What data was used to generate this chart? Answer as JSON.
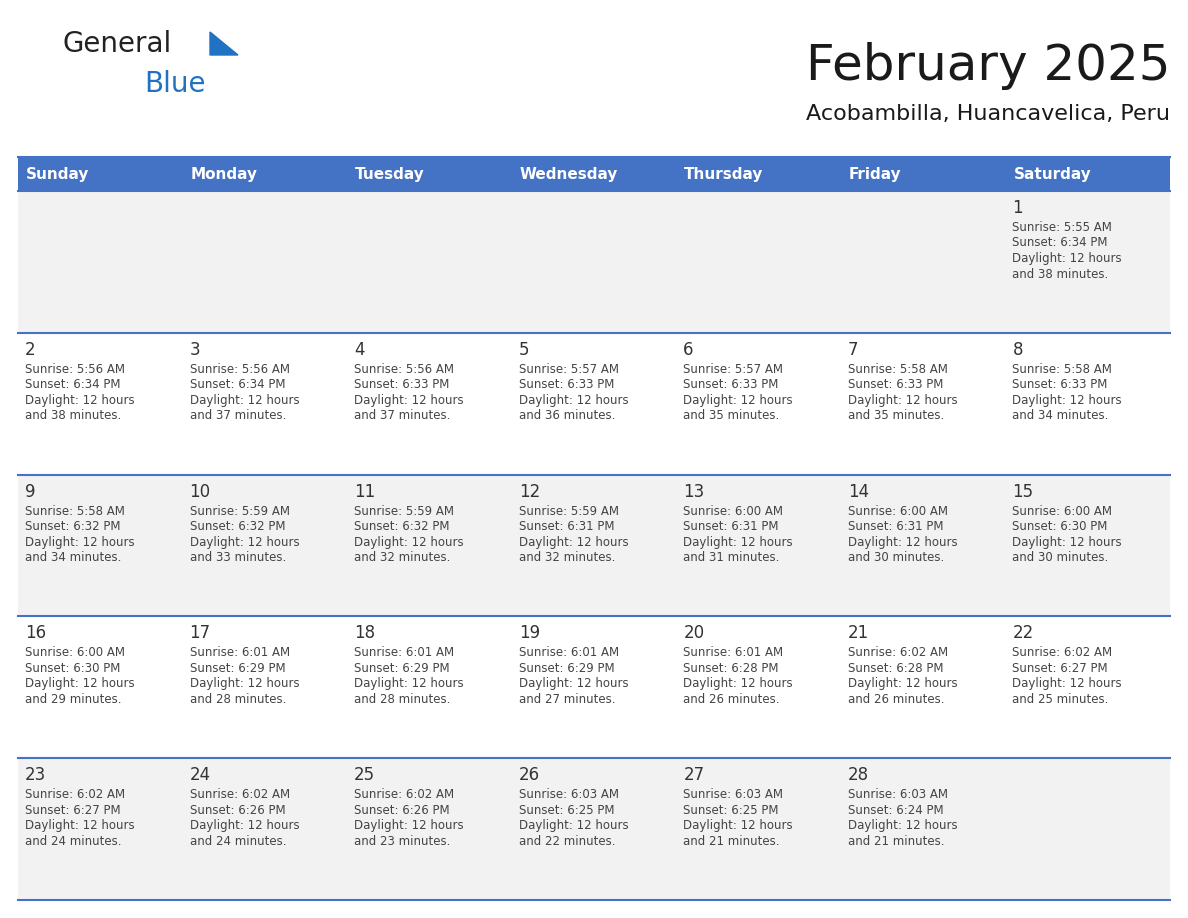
{
  "title": "February 2025",
  "subtitle": "Acobambilla, Huancavelica, Peru",
  "header_bg": "#4472C4",
  "header_text": "#FFFFFF",
  "cell_bg_row0": "#F2F2F2",
  "cell_bg_row1": "#FFFFFF",
  "cell_bg_row2": "#F2F2F2",
  "cell_bg_row3": "#FFFFFF",
  "cell_bg_row4": "#F2F2F2",
  "line_color": "#4472C4",
  "day_headers": [
    "Sunday",
    "Monday",
    "Tuesday",
    "Wednesday",
    "Thursday",
    "Friday",
    "Saturday"
  ],
  "days": [
    {
      "day": 1,
      "col": 6,
      "row": 0,
      "sunrise": "5:55 AM",
      "sunset": "6:34 PM",
      "daylight": "12 hours and 38 minutes."
    },
    {
      "day": 2,
      "col": 0,
      "row": 1,
      "sunrise": "5:56 AM",
      "sunset": "6:34 PM",
      "daylight": "12 hours and 38 minutes."
    },
    {
      "day": 3,
      "col": 1,
      "row": 1,
      "sunrise": "5:56 AM",
      "sunset": "6:34 PM",
      "daylight": "12 hours and 37 minutes."
    },
    {
      "day": 4,
      "col": 2,
      "row": 1,
      "sunrise": "5:56 AM",
      "sunset": "6:33 PM",
      "daylight": "12 hours and 37 minutes."
    },
    {
      "day": 5,
      "col": 3,
      "row": 1,
      "sunrise": "5:57 AM",
      "sunset": "6:33 PM",
      "daylight": "12 hours and 36 minutes."
    },
    {
      "day": 6,
      "col": 4,
      "row": 1,
      "sunrise": "5:57 AM",
      "sunset": "6:33 PM",
      "daylight": "12 hours and 35 minutes."
    },
    {
      "day": 7,
      "col": 5,
      "row": 1,
      "sunrise": "5:58 AM",
      "sunset": "6:33 PM",
      "daylight": "12 hours and 35 minutes."
    },
    {
      "day": 8,
      "col": 6,
      "row": 1,
      "sunrise": "5:58 AM",
      "sunset": "6:33 PM",
      "daylight": "12 hours and 34 minutes."
    },
    {
      "day": 9,
      "col": 0,
      "row": 2,
      "sunrise": "5:58 AM",
      "sunset": "6:32 PM",
      "daylight": "12 hours and 34 minutes."
    },
    {
      "day": 10,
      "col": 1,
      "row": 2,
      "sunrise": "5:59 AM",
      "sunset": "6:32 PM",
      "daylight": "12 hours and 33 minutes."
    },
    {
      "day": 11,
      "col": 2,
      "row": 2,
      "sunrise": "5:59 AM",
      "sunset": "6:32 PM",
      "daylight": "12 hours and 32 minutes."
    },
    {
      "day": 12,
      "col": 3,
      "row": 2,
      "sunrise": "5:59 AM",
      "sunset": "6:31 PM",
      "daylight": "12 hours and 32 minutes."
    },
    {
      "day": 13,
      "col": 4,
      "row": 2,
      "sunrise": "6:00 AM",
      "sunset": "6:31 PM",
      "daylight": "12 hours and 31 minutes."
    },
    {
      "day": 14,
      "col": 5,
      "row": 2,
      "sunrise": "6:00 AM",
      "sunset": "6:31 PM",
      "daylight": "12 hours and 30 minutes."
    },
    {
      "day": 15,
      "col": 6,
      "row": 2,
      "sunrise": "6:00 AM",
      "sunset": "6:30 PM",
      "daylight": "12 hours and 30 minutes."
    },
    {
      "day": 16,
      "col": 0,
      "row": 3,
      "sunrise": "6:00 AM",
      "sunset": "6:30 PM",
      "daylight": "12 hours and 29 minutes."
    },
    {
      "day": 17,
      "col": 1,
      "row": 3,
      "sunrise": "6:01 AM",
      "sunset": "6:29 PM",
      "daylight": "12 hours and 28 minutes."
    },
    {
      "day": 18,
      "col": 2,
      "row": 3,
      "sunrise": "6:01 AM",
      "sunset": "6:29 PM",
      "daylight": "12 hours and 28 minutes."
    },
    {
      "day": 19,
      "col": 3,
      "row": 3,
      "sunrise": "6:01 AM",
      "sunset": "6:29 PM",
      "daylight": "12 hours and 27 minutes."
    },
    {
      "day": 20,
      "col": 4,
      "row": 3,
      "sunrise": "6:01 AM",
      "sunset": "6:28 PM",
      "daylight": "12 hours and 26 minutes."
    },
    {
      "day": 21,
      "col": 5,
      "row": 3,
      "sunrise": "6:02 AM",
      "sunset": "6:28 PM",
      "daylight": "12 hours and 26 minutes."
    },
    {
      "day": 22,
      "col": 6,
      "row": 3,
      "sunrise": "6:02 AM",
      "sunset": "6:27 PM",
      "daylight": "12 hours and 25 minutes."
    },
    {
      "day": 23,
      "col": 0,
      "row": 4,
      "sunrise": "6:02 AM",
      "sunset": "6:27 PM",
      "daylight": "12 hours and 24 minutes."
    },
    {
      "day": 24,
      "col": 1,
      "row": 4,
      "sunrise": "6:02 AM",
      "sunset": "6:26 PM",
      "daylight": "12 hours and 24 minutes."
    },
    {
      "day": 25,
      "col": 2,
      "row": 4,
      "sunrise": "6:02 AM",
      "sunset": "6:26 PM",
      "daylight": "12 hours and 23 minutes."
    },
    {
      "day": 26,
      "col": 3,
      "row": 4,
      "sunrise": "6:03 AM",
      "sunset": "6:25 PM",
      "daylight": "12 hours and 22 minutes."
    },
    {
      "day": 27,
      "col": 4,
      "row": 4,
      "sunrise": "6:03 AM",
      "sunset": "6:25 PM",
      "daylight": "12 hours and 21 minutes."
    },
    {
      "day": 28,
      "col": 5,
      "row": 4,
      "sunrise": "6:03 AM",
      "sunset": "6:24 PM",
      "daylight": "12 hours and 21 minutes."
    }
  ],
  "logo_color1": "#222222",
  "logo_color2": "#2272C3",
  "logo_triangle_color": "#2272C3",
  "title_color": "#1a1a1a",
  "subtitle_color": "#1a1a1a",
  "cell_text_color": "#444444",
  "day_num_color": "#333333"
}
